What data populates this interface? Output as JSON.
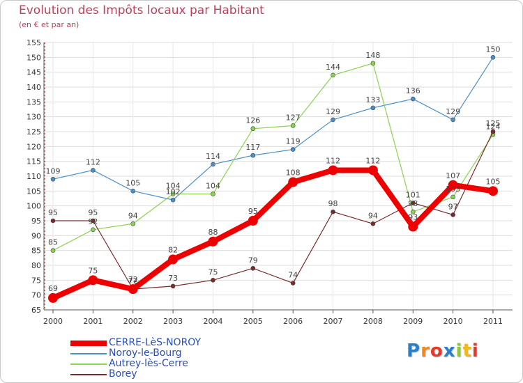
{
  "header": {
    "title": "Evolution des Impôts locaux par Habitant",
    "subtitle": "(en € et par an)"
  },
  "brand": {
    "letters": [
      "P",
      "r",
      "o",
      "x",
      "i",
      "t",
      "i"
    ],
    "colors": [
      "#2a7fc8",
      "#f08a1c",
      "#e23a2a",
      "#2a7fc8",
      "#8cc832",
      "#f0b81c",
      "#e23a2a"
    ]
  },
  "chart_data": {
    "type": "line",
    "title": "Evolution des Impôts locaux par Habitant",
    "subtitle": "(en € et par an)",
    "xlabel": "",
    "ylabel": "",
    "x": [
      "2000",
      "2001",
      "2002",
      "2003",
      "2004",
      "2005",
      "2006",
      "2007",
      "2008",
      "2009",
      "2010",
      "2011"
    ],
    "ylim": [
      65,
      155
    ],
    "yticks": [
      65,
      70,
      75,
      80,
      85,
      90,
      95,
      100,
      105,
      110,
      115,
      120,
      125,
      130,
      135,
      140,
      145,
      150,
      155
    ],
    "grid": true,
    "legend_position": "bottom-left",
    "series": [
      {
        "name": "CERRE-LèS-NOROY",
        "values": [
          69,
          75,
          72,
          82,
          88,
          95,
          108,
          112,
          112,
          93,
          107,
          105
        ],
        "labels": [
          "69",
          "75",
          "72",
          "82",
          "88",
          "95",
          "108",
          "112",
          "112",
          "93",
          "107",
          "105"
        ],
        "color": "#ee0000",
        "emphasis": true
      },
      {
        "name": "Noroy-le-Bourg",
        "values": [
          109,
          112,
          105,
          102,
          114,
          117,
          119,
          129,
          133,
          136,
          129,
          150
        ],
        "labels": [
          "109",
          "112",
          "105",
          "102",
          "114",
          "117",
          "119",
          "129",
          "133",
          "136",
          "129",
          "150"
        ],
        "color": "#4a90c8",
        "emphasis": false
      },
      {
        "name": "Autrey-lès-Cerre",
        "values": [
          85,
          92,
          94,
          104,
          104,
          126,
          127,
          144,
          148,
          98,
          103,
          124
        ],
        "labels": [
          "85",
          "92",
          "94",
          "104",
          "104",
          "126",
          "127",
          "144",
          "148",
          "98",
          "103",
          "124"
        ],
        "color": "#8cd250",
        "emphasis": false
      },
      {
        "name": "Borey",
        "values": [
          95,
          95,
          72,
          73,
          75,
          79,
          74,
          98,
          94,
          101,
          97,
          125
        ],
        "labels": [
          "95",
          "95",
          "72",
          "73",
          "75",
          "79",
          "74",
          "98",
          "94",
          "101",
          "97",
          "125"
        ],
        "color": "#7a2a2a",
        "emphasis": false
      }
    ]
  }
}
